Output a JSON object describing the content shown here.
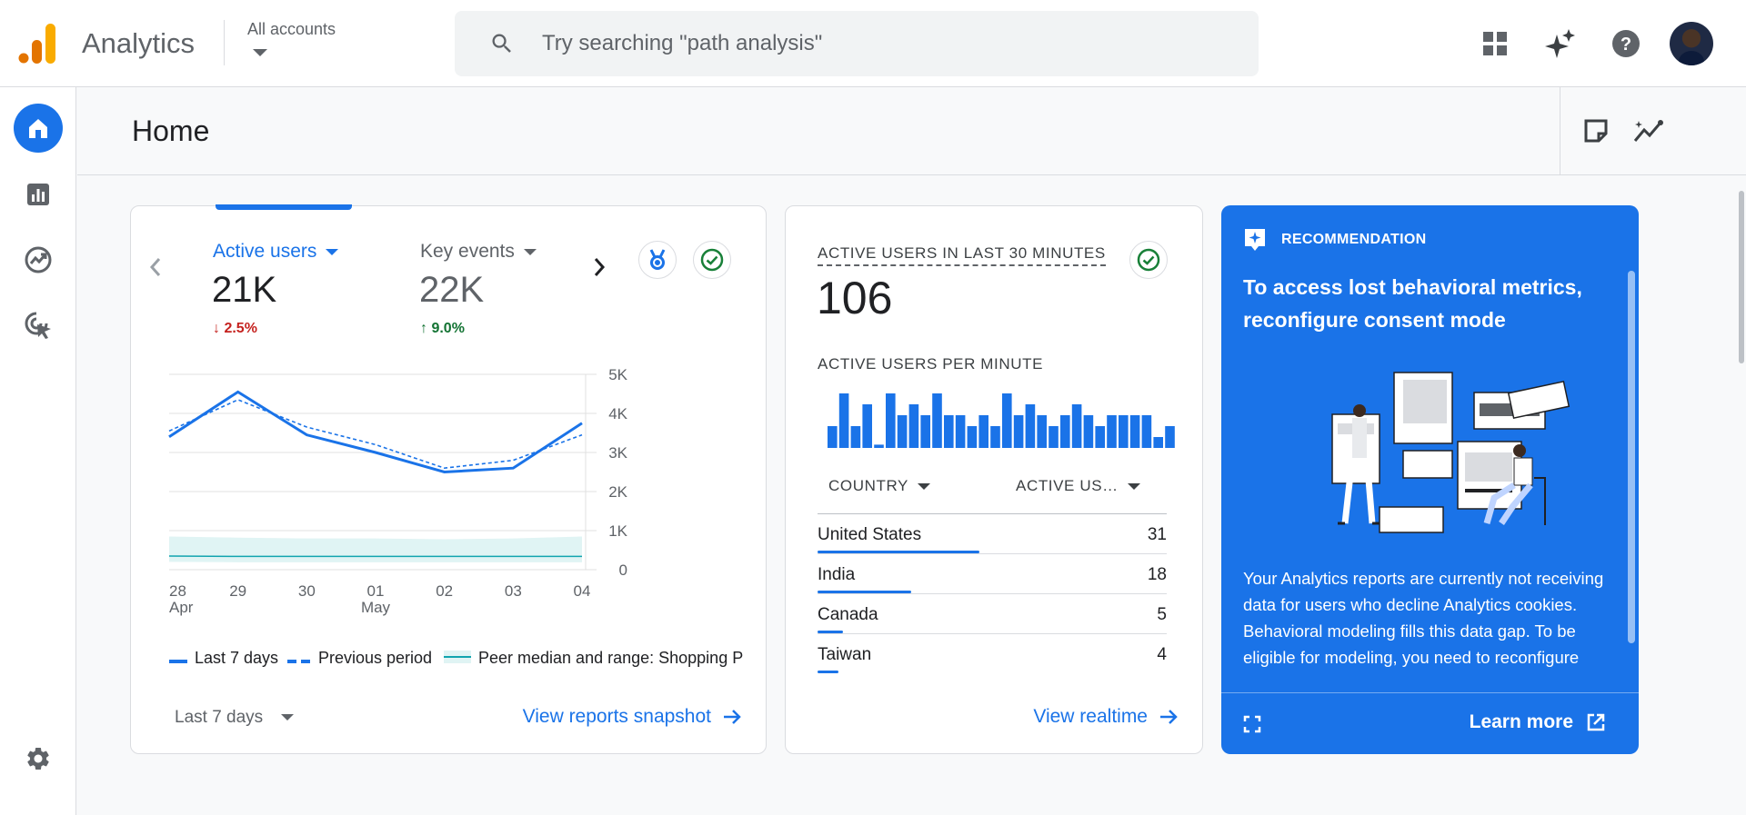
{
  "app": {
    "title": "Analytics",
    "account_selector": "All accounts"
  },
  "search": {
    "placeholder": "Try searching \"path analysis\""
  },
  "topbar_icons": [
    "apps-grid-icon",
    "sparkle-icon",
    "help-icon",
    "avatar"
  ],
  "sidenav": {
    "items": [
      "home-icon",
      "reports-icon",
      "explore-icon",
      "advertising-icon"
    ],
    "settings": "gear-icon"
  },
  "page": {
    "title": "Home"
  },
  "overview": {
    "metrics": [
      {
        "label": "Active users",
        "value": "21K",
        "delta": "2.5%",
        "direction": "down"
      },
      {
        "label": "Key events",
        "value": "22K",
        "delta": "9.0%",
        "direction": "up"
      }
    ],
    "date_range": "Last 7 days",
    "link": "View reports snapshot"
  },
  "chart_data": {
    "type": "line",
    "x": [
      "28 Apr",
      "29",
      "30",
      "01 May",
      "02",
      "03",
      "04"
    ],
    "x_tick_labels": [
      [
        "28",
        "Apr"
      ],
      [
        "29",
        ""
      ],
      [
        "30",
        ""
      ],
      [
        "01",
        "May"
      ],
      [
        "02",
        ""
      ],
      [
        "03",
        ""
      ],
      [
        "04",
        ""
      ]
    ],
    "y_ticks": [
      "5K",
      "4K",
      "3K",
      "2K",
      "1K",
      "0"
    ],
    "ylim": [
      0,
      5000
    ],
    "series": [
      {
        "name": "Last 7 days",
        "style": "solid",
        "values": [
          3400,
          4550,
          3450,
          3000,
          2500,
          2600,
          3750
        ]
      },
      {
        "name": "Previous period",
        "style": "dashed",
        "values": [
          3550,
          4350,
          3650,
          3200,
          2600,
          2800,
          3450
        ]
      },
      {
        "name": "Peer median and range: Shopping P",
        "style": "band",
        "median": [
          350,
          340,
          340,
          340,
          340,
          340,
          340
        ],
        "range_low": [
          200,
          190,
          190,
          190,
          190,
          190,
          190
        ],
        "range_high": [
          850,
          820,
          800,
          800,
          780,
          800,
          850
        ]
      }
    ],
    "colors": {
      "line": "#1a73e8",
      "band_fill": "#e0f4f4",
      "median": "#12a4af"
    },
    "grid": true,
    "legend_position": "bottom"
  },
  "realtime": {
    "title": "ACTIVE USERS IN LAST 30 MINUTES",
    "value": "106",
    "per_minute_label": "ACTIVE USERS PER MINUTE",
    "per_minute": [
      2,
      5,
      2,
      4,
      0.3,
      5,
      3,
      4,
      3,
      5,
      3,
      3,
      2,
      3,
      2,
      5,
      3,
      4,
      3,
      2,
      3,
      4,
      3,
      2,
      3,
      3,
      3,
      3,
      1,
      2
    ],
    "col_country": "COUNTRY",
    "col_users": "ACTIVE US…",
    "rows": [
      {
        "country": "United States",
        "users": "31",
        "share": 1.0
      },
      {
        "country": "India",
        "users": "18",
        "share": 0.58
      },
      {
        "country": "Canada",
        "users": "5",
        "share": 0.16
      },
      {
        "country": "Taiwan",
        "users": "4",
        "share": 0.13
      }
    ],
    "link": "View realtime"
  },
  "recommendation": {
    "label": "RECOMMENDATION",
    "title": "To access lost behavioral metrics, reconfigure consent mode",
    "body": "Your Analytics reports are currently not receiving data for users who decline Analytics cookies. Behavioral modeling fills this data gap. To be eligible for modeling, you need to reconfigure consent mode to ensure that",
    "link": "Learn more"
  }
}
